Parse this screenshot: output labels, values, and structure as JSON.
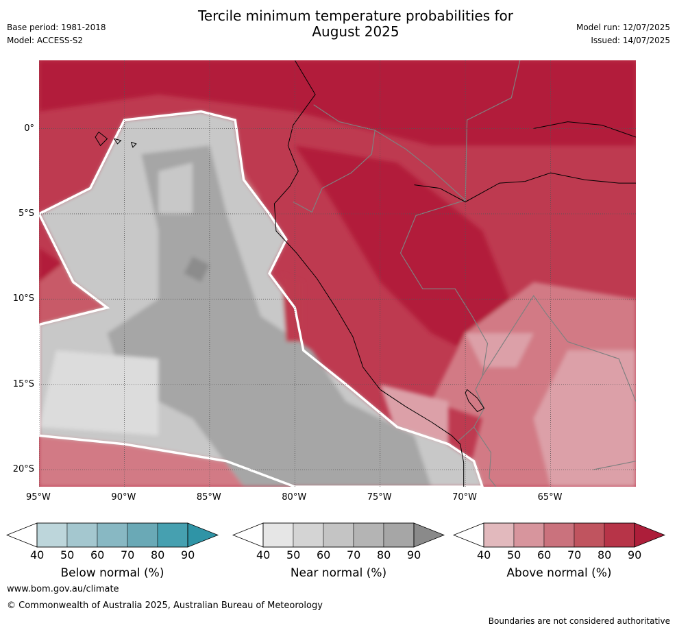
{
  "header": {
    "title_line1": "Tercile minimum temperature probabilities for",
    "title_line2": "August 2025",
    "base_period": "Base period: 1981-2018",
    "model": "Model: ACCESS-S2",
    "model_run": "Model run: 12/07/2025",
    "issued": "Issued: 14/07/2025"
  },
  "map": {
    "lat_labels": [
      "0°",
      "5°S",
      "10°S",
      "15°S",
      "20°S"
    ],
    "lon_labels": [
      "95°W",
      "90°W",
      "85°W",
      "80°W",
      "75°W",
      "70°W",
      "65°W"
    ],
    "lat_values": [
      0,
      -5,
      -10,
      -15,
      -20
    ],
    "lon_values": [
      -95,
      -90,
      -85,
      -80,
      -75,
      -70,
      -65
    ],
    "extent": {
      "lon_min": -95,
      "lon_max": -60,
      "lat_min": -21,
      "lat_max": 4
    },
    "colors": {
      "ocean_base": "#a6a6a6",
      "near_dark": "#8c8c8c",
      "near_light": "#c8c8c8",
      "near_lighter": "#dcdcdc",
      "above_90": "#b21e3a",
      "above_80": "#be3a50",
      "above_70": "#c85a68",
      "above_60": "#d27a85",
      "above_50": "#dca0a8",
      "above_40": "#e6c0c4",
      "grid": "#555555",
      "coast": "#000000",
      "border": "#808080"
    }
  },
  "colorbars": [
    {
      "title": "Below normal (%)",
      "ticks": [
        "40",
        "50",
        "60",
        "70",
        "80",
        "90"
      ],
      "colors": [
        "#ffffff",
        "#bdd6db",
        "#a4c7cf",
        "#88b8c3",
        "#6aa9b6",
        "#46a0b0",
        "#2f94a6"
      ]
    },
    {
      "title": "Near normal (%)",
      "ticks": [
        "40",
        "50",
        "60",
        "70",
        "80",
        "90"
      ],
      "colors": [
        "#ffffff",
        "#e6e6e6",
        "#d4d4d4",
        "#c4c4c4",
        "#b4b4b4",
        "#a6a6a6",
        "#8a8a8a"
      ]
    },
    {
      "title": "Above normal (%)",
      "ticks": [
        "40",
        "50",
        "60",
        "70",
        "80",
        "90"
      ],
      "colors": [
        "#ffffff",
        "#e2b9bd",
        "#d7959d",
        "#ca727d",
        "#c0545f",
        "#b73448",
        "#ad1e3a"
      ]
    }
  ],
  "footer": {
    "website": "www.bom.gov.au/climate",
    "copyright": "© Commonwealth of Australia 2025, Australian Bureau of Meteorology",
    "disclaimer": "Boundaries are not considered authoritative"
  }
}
